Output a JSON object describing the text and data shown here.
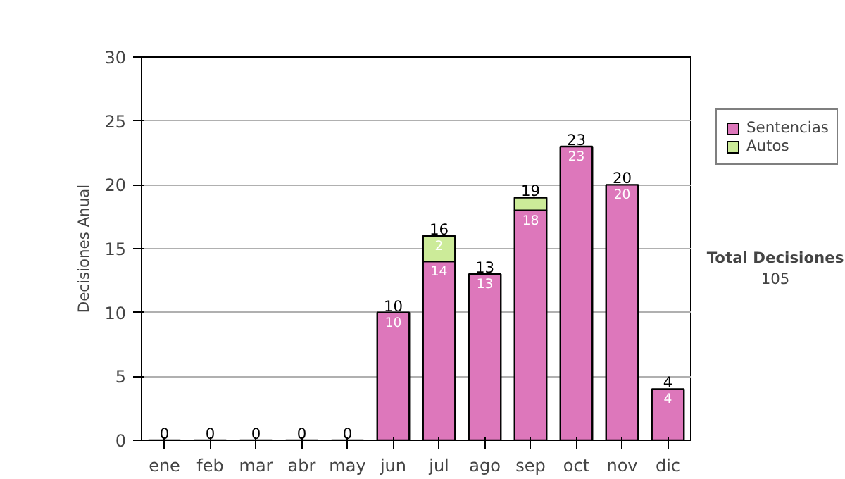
{
  "chart_data": {
    "type": "bar",
    "stacked": true,
    "ylabel": "Decisiones Anual",
    "categories": [
      "ene",
      "feb",
      "mar",
      "abr",
      "may",
      "jun",
      "jul",
      "ago",
      "sep",
      "oct",
      "nov",
      "dic"
    ],
    "series": [
      {
        "name": "Sentencias",
        "color": "#dd77bb",
        "values": [
          0,
          0,
          0,
          0,
          0,
          10,
          14,
          13,
          18,
          23,
          20,
          4
        ],
        "value_labels": [
          null,
          null,
          null,
          null,
          null,
          "10",
          "14",
          "13",
          "18",
          "23",
          "20",
          "4"
        ]
      },
      {
        "name": "Autos",
        "color": "#cceb99",
        "values": [
          0,
          0,
          0,
          0,
          0,
          0,
          2,
          0,
          1,
          0,
          0,
          0
        ],
        "value_labels": [
          null,
          null,
          null,
          null,
          null,
          null,
          "2",
          null,
          null,
          null,
          null,
          null
        ]
      }
    ],
    "totals": [
      "0",
      "0",
      "0",
      "0",
      "0",
      "10",
      "16",
      "13",
      "19",
      "23",
      "20",
      "4"
    ],
    "ylim": [
      0,
      30
    ],
    "yticks": [
      0,
      5,
      10,
      15,
      20,
      25,
      30
    ],
    "grid": "y",
    "legend": "right",
    "annotations": [
      "Total Decisiones",
      "105"
    ]
  }
}
